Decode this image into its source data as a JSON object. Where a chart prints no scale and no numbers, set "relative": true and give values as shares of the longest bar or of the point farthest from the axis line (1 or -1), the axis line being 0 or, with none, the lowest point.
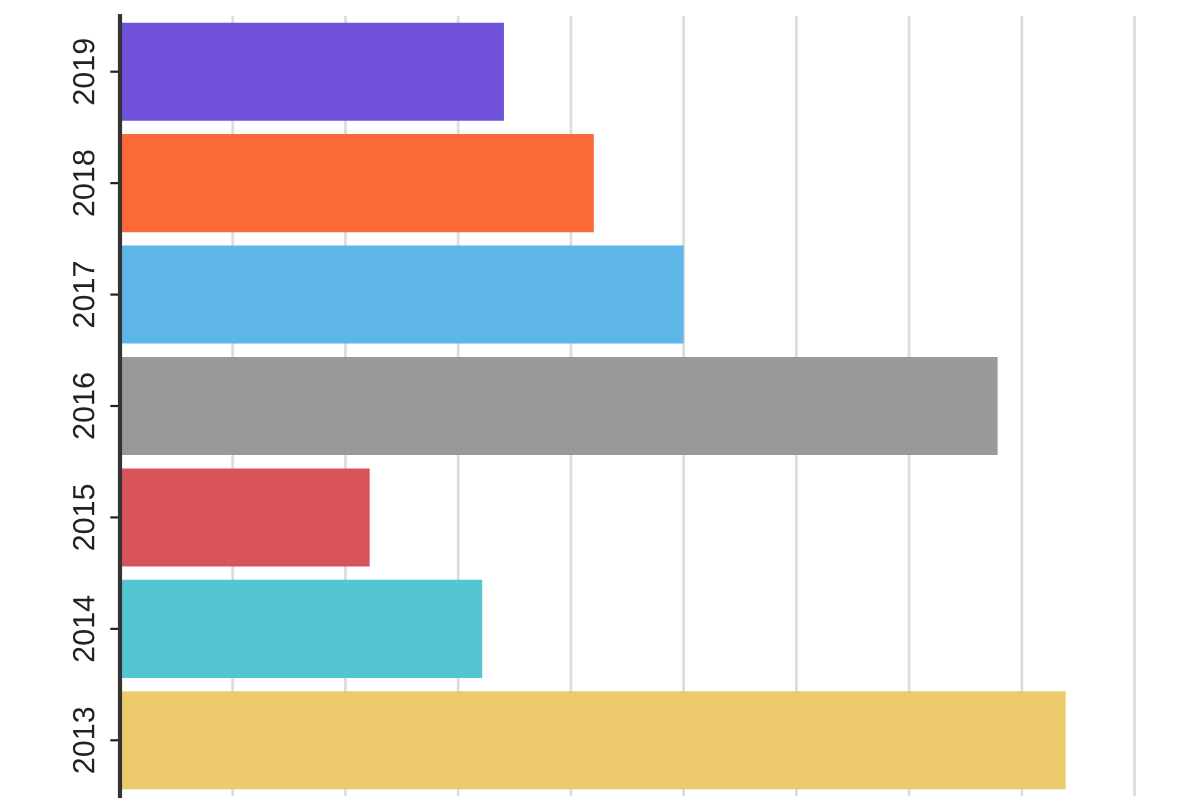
{
  "chart_data": {
    "type": "bar",
    "orientation": "horizontal",
    "relative": true,
    "categories": [
      "2019",
      "2018",
      "2017",
      "2016",
      "2015",
      "2014",
      "2013"
    ],
    "values": [
      0.406,
      0.501,
      0.596,
      0.928,
      0.264,
      0.383,
      1
    ],
    "colors": [
      "#6f52d9",
      "#fd6a3a",
      "#5db5e8",
      "#999999",
      "#d9535a",
      "#54c6d2",
      "#edcb6c"
    ],
    "grid": "x"
  }
}
